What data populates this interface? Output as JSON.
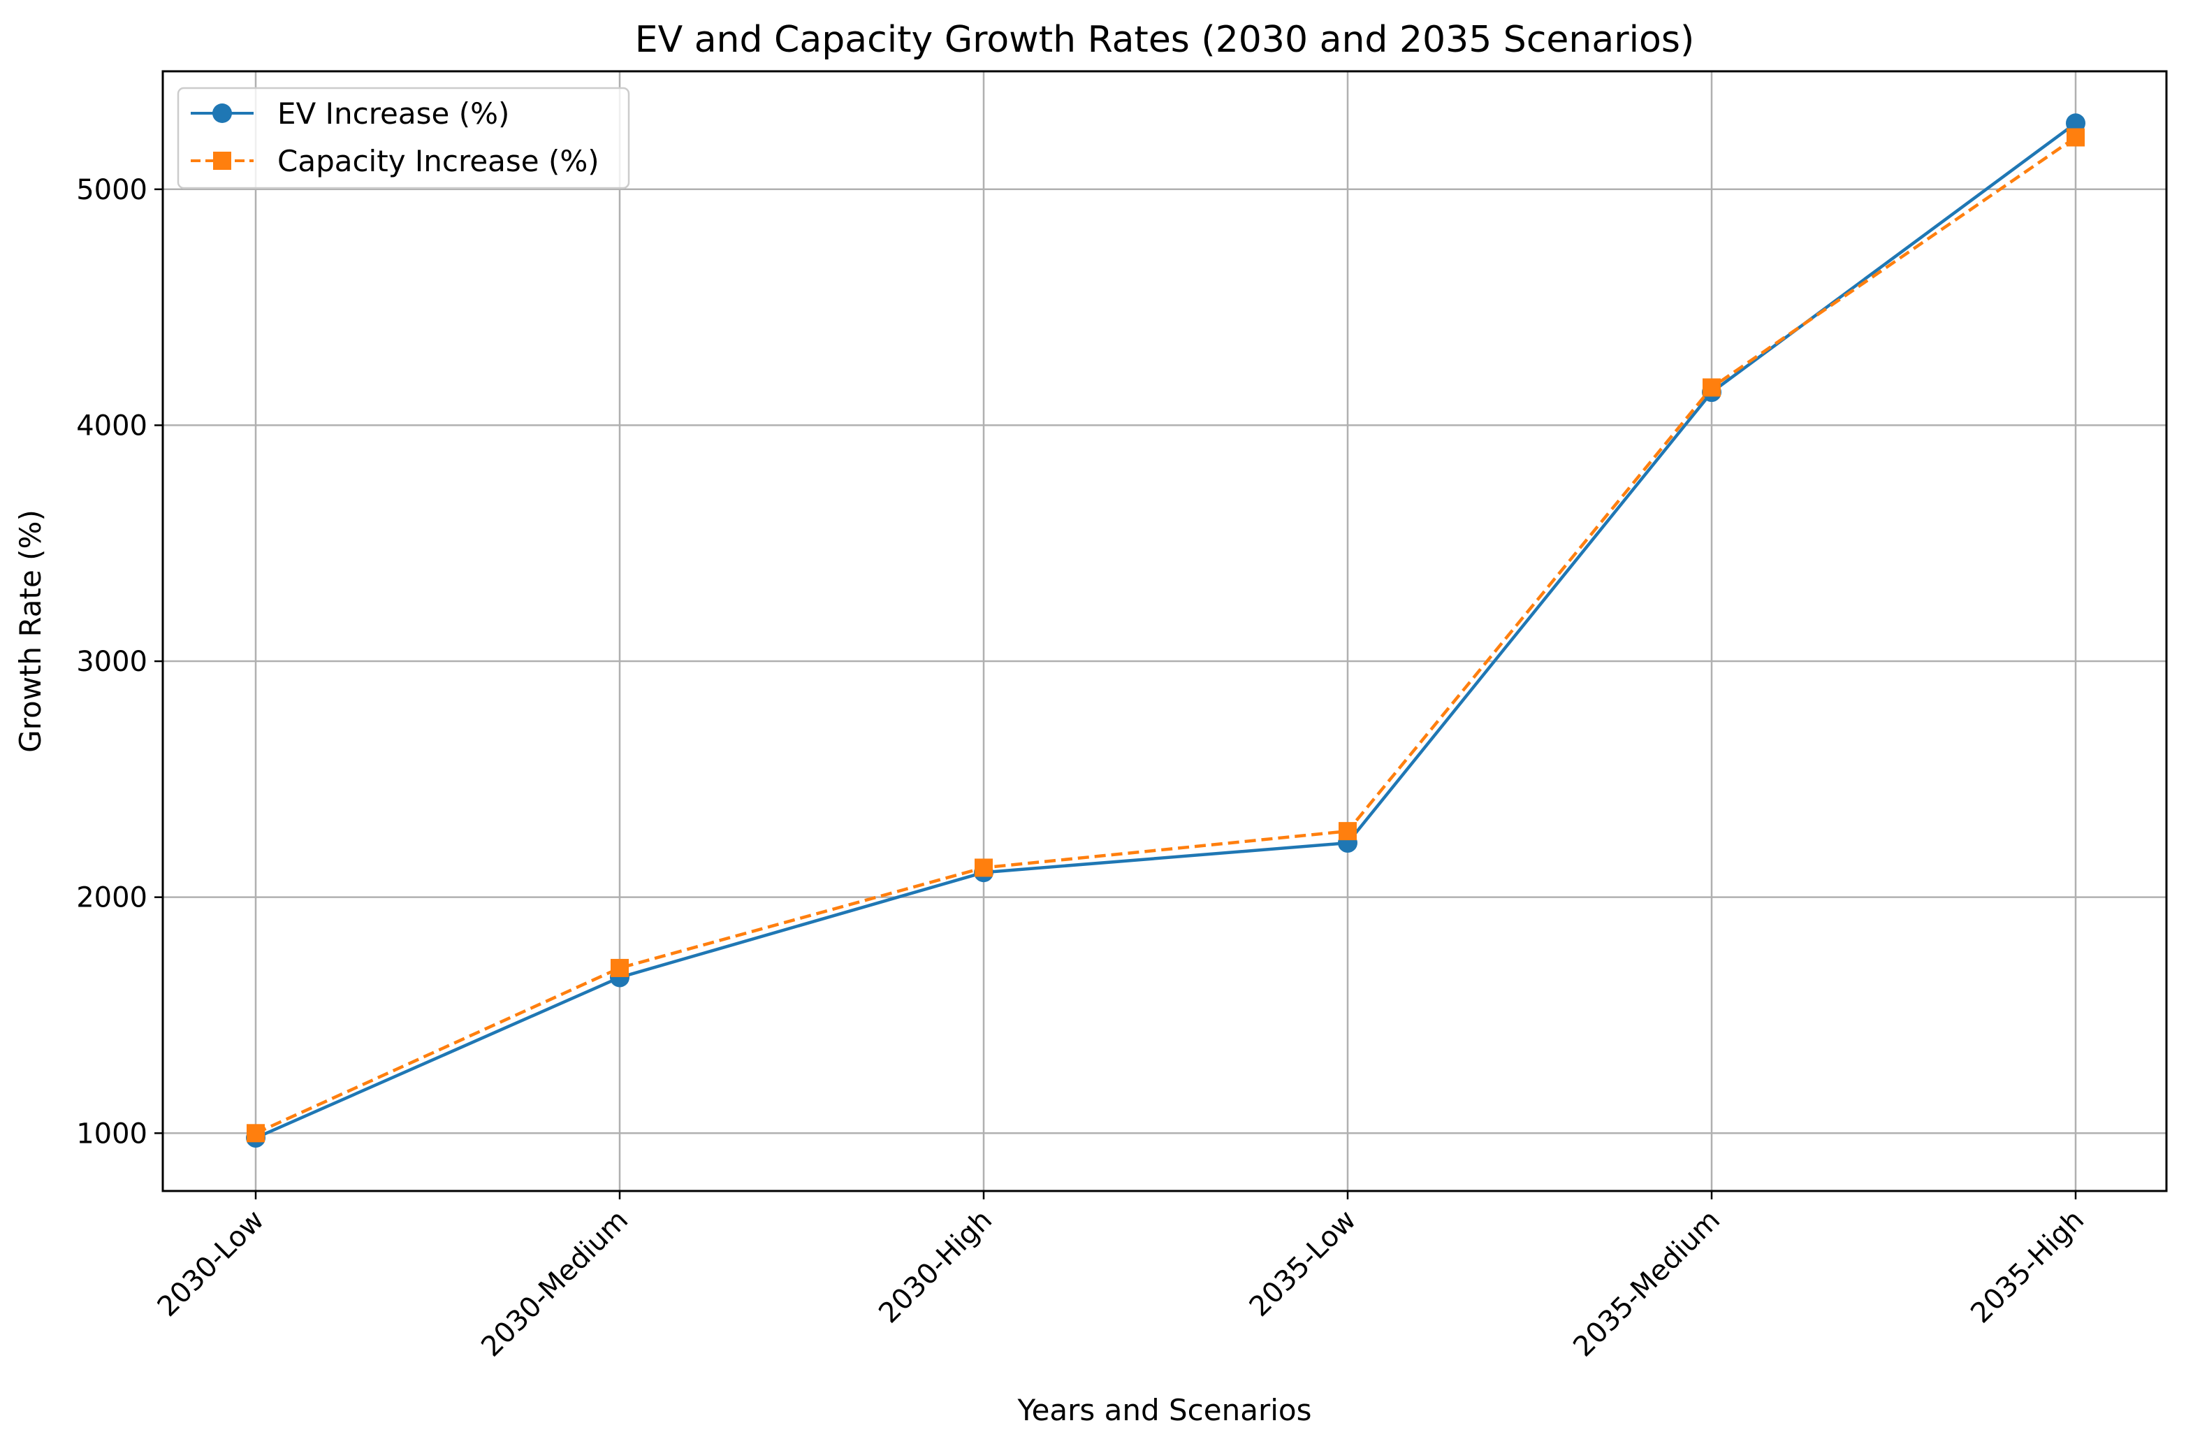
{
  "chart_data": {
    "type": "line",
    "title": "EV and Capacity Growth Rates (2030 and 2035 Scenarios)",
    "xlabel": "Years and Scenarios",
    "ylabel": "Growth Rate (%)",
    "categories": [
      "2030-Low",
      "2030-Medium",
      "2030-High",
      "2035-Low",
      "2035-Medium",
      "2035-High"
    ],
    "series": [
      {
        "name": "EV Increase (%)",
        "values": [
          980,
          1660,
          2105,
          2230,
          4140,
          5280
        ],
        "color": "#1f77b4",
        "marker": "circle",
        "line_style": "solid"
      },
      {
        "name": "Capacity Increase (%)",
        "values": [
          1000,
          1700,
          2125,
          2280,
          4160,
          5220
        ],
        "color": "#ff7f0e",
        "marker": "square",
        "line_style": "dashed"
      }
    ],
    "ylim": [
      755,
      5500
    ],
    "yticks": [
      1000,
      2000,
      3000,
      4000,
      5000
    ],
    "grid": true,
    "legend_position": "top-left"
  }
}
